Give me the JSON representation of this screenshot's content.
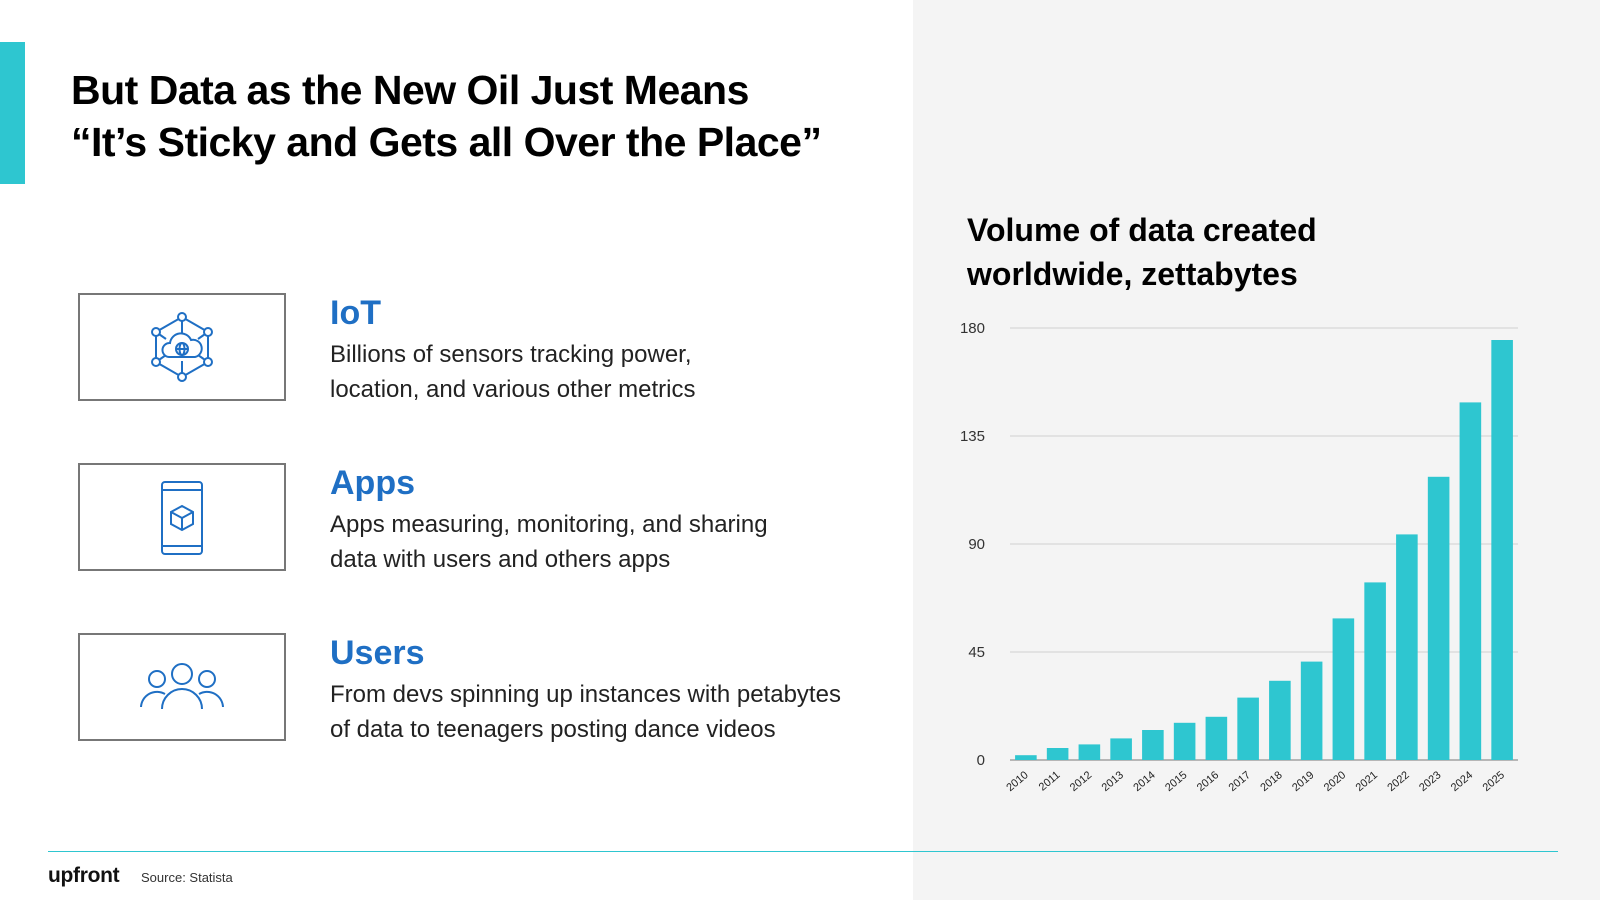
{
  "slide": {
    "title_lines": [
      "But Data as the New Oil Just Means",
      "“It’s Sticky and Gets all Over the Place”"
    ]
  },
  "features": [
    {
      "icon": "iot-cloud-network-icon",
      "title": "IoT",
      "desc_lines": [
        "Billions of sensors tracking power,",
        "location, and various other metrics"
      ]
    },
    {
      "icon": "mobile-app-cube-icon",
      "title": "Apps",
      "desc_lines": [
        "Apps measuring, monitoring, and sharing",
        "data with users and others apps"
      ]
    },
    {
      "icon": "users-group-icon",
      "title": "Users",
      "desc_lines": [
        "From devs spinning up instances with petabytes",
        "of data to teenagers posting dance videos"
      ]
    }
  ],
  "chart_data": {
    "type": "bar",
    "title_lines": [
      "Volume of data created",
      "worldwide, zettabytes"
    ],
    "categories": [
      "2010",
      "2011",
      "2012",
      "2013",
      "2014",
      "2015",
      "2016",
      "2017",
      "2018",
      "2019",
      "2020",
      "2021",
      "2022",
      "2023",
      "2024",
      "2025"
    ],
    "values": [
      2,
      5,
      6.5,
      9,
      12.5,
      15.5,
      18,
      26,
      33,
      41,
      59,
      74,
      94,
      118,
      149,
      175
    ],
    "yticks": [
      0,
      45,
      90,
      135,
      180
    ],
    "ylim": [
      0,
      180
    ],
    "xlabel": "",
    "ylabel": "",
    "grid": true,
    "bar_color": "#2ec6d0"
  },
  "footer": {
    "logo": "upfront",
    "source": "Source: Statista"
  },
  "colors": {
    "accent": "#2ec6d0",
    "feature_title": "#1f6fc4",
    "icon": "#1f6fc4"
  }
}
